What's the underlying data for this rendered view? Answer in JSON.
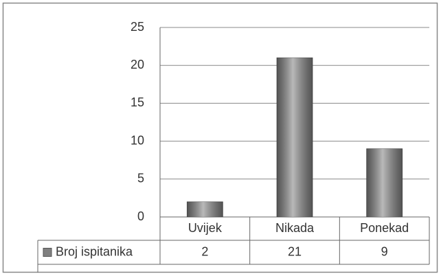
{
  "chart_data": {
    "type": "bar",
    "categories": [
      "Uvijek",
      "Nikada",
      "Ponekad"
    ],
    "series": [
      {
        "name": "Broj ispitanika",
        "color": "#808080",
        "values": [
          2,
          21,
          9
        ]
      }
    ],
    "ylim": [
      0,
      25
    ],
    "yticks": [
      0,
      5,
      10,
      15,
      20,
      25
    ],
    "grid": true
  }
}
